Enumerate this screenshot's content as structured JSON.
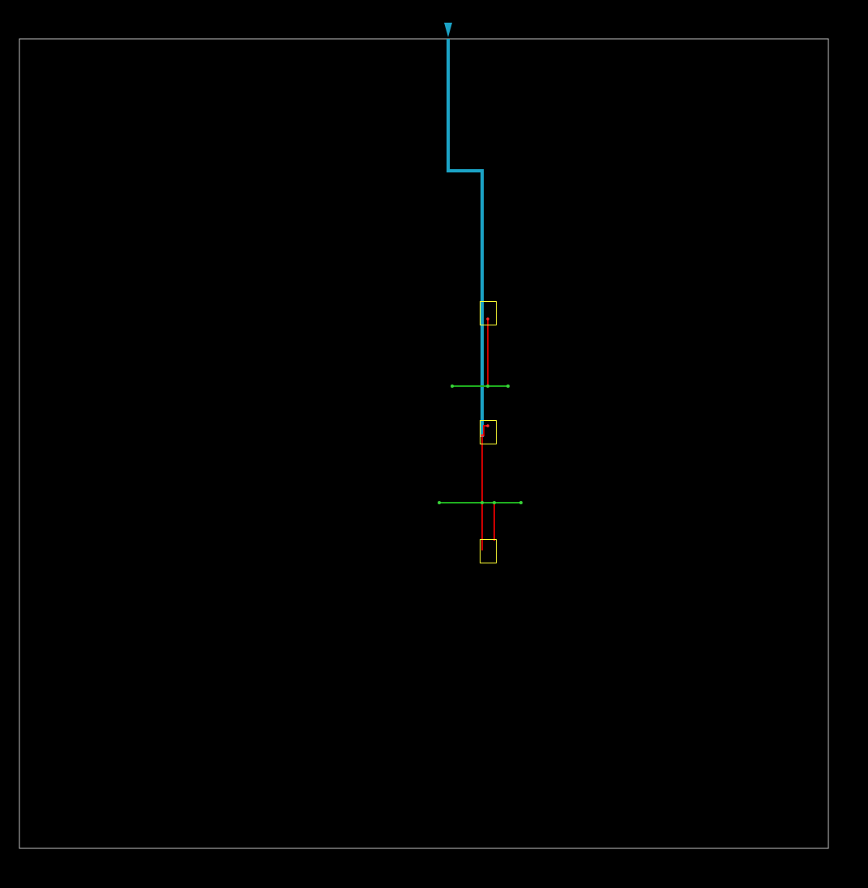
{
  "colors": {
    "background": "#000000",
    "frame": "#bfbfbf",
    "main_path": "#1ba3c6",
    "branch": "#cc0000",
    "crossbar": "#1fae1f",
    "box": "#ffff33",
    "marker": "#ff2a2a"
  },
  "icons": {
    "start": "triangle-down-icon"
  },
  "elements": {
    "frame": "boundary-frame",
    "main_path": "cyan-trunk-path",
    "crossbars": 2,
    "boxes": 3
  }
}
